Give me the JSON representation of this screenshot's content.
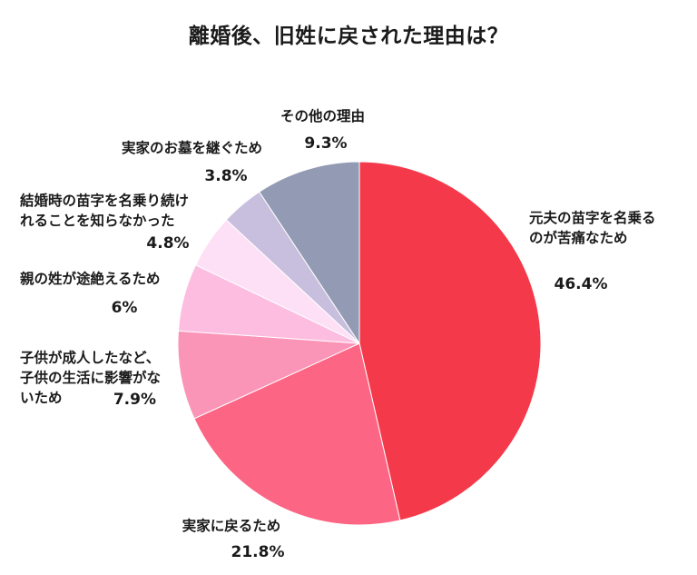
{
  "chart_data": {
    "type": "pie",
    "title": "離婚後、旧姓に戻された理由は？",
    "start_angle_deg": 0,
    "direction": "clockwise",
    "slices": [
      {
        "label": [
          "元夫の苗字を名乗る",
          "のが苦痛なため"
        ],
        "value": 46.4,
        "value_text": "46.4%",
        "color": "#f43a4a"
      },
      {
        "label": [
          "実家に戻るため"
        ],
        "value": 21.8,
        "value_text": "21.8%",
        "color": "#fc6583"
      },
      {
        "label": [
          "子供が成人したなど、",
          "子供の生活に影響がな",
          "いため"
        ],
        "value": 7.9,
        "value_text": "7.9%",
        "color": "#fb95b8"
      },
      {
        "label": [
          "親の姓が途絶えるため"
        ],
        "value": 6,
        "value_text": "6%",
        "color": "#fcbde0"
      },
      {
        "label": [
          "結婚時の苗字を名乗り続け",
          "れることを知らなかった"
        ],
        "value": 4.8,
        "value_text": "4.8%",
        "color": "#fde0f5"
      },
      {
        "label": [
          "実家のお墓を継ぐため"
        ],
        "value": 3.8,
        "value_text": "3.8%",
        "color": "#c8bedd"
      },
      {
        "label": [
          "その他の理由"
        ],
        "value": 9.3,
        "value_text": "9.3%",
        "color": "#929bb3"
      }
    ]
  }
}
